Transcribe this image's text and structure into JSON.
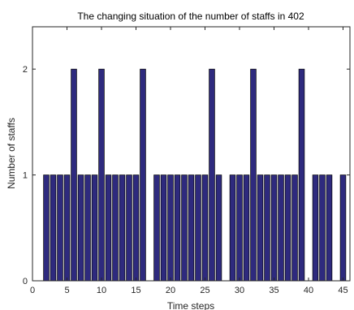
{
  "chart_data": {
    "type": "bar",
    "title": "The changing situation of the number of staffs in 402",
    "xlabel": "Time steps",
    "ylabel": "Number of staffs",
    "xlim": [
      0,
      46
    ],
    "ylim": [
      0,
      2.4
    ],
    "xticks": [
      0,
      5,
      10,
      15,
      20,
      25,
      30,
      35,
      40,
      45
    ],
    "yticks": [
      0,
      1,
      2
    ],
    "bar_color": "#2e2a7e",
    "bar_edge_color": "#000000",
    "x": [
      2,
      3,
      4,
      5,
      6,
      7,
      8,
      9,
      10,
      11,
      12,
      13,
      14,
      15,
      16,
      18,
      19,
      20,
      21,
      22,
      23,
      24,
      25,
      26,
      27,
      29,
      30,
      31,
      32,
      33,
      34,
      35,
      36,
      37,
      38,
      39,
      41,
      42,
      43,
      45
    ],
    "values": [
      1,
      1,
      1,
      1,
      2,
      1,
      1,
      1,
      2,
      1,
      1,
      1,
      1,
      1,
      2,
      1,
      1,
      1,
      1,
      1,
      1,
      1,
      1,
      2,
      1,
      1,
      1,
      1,
      2,
      1,
      1,
      1,
      1,
      1,
      1,
      2,
      1,
      1,
      1,
      1
    ]
  }
}
